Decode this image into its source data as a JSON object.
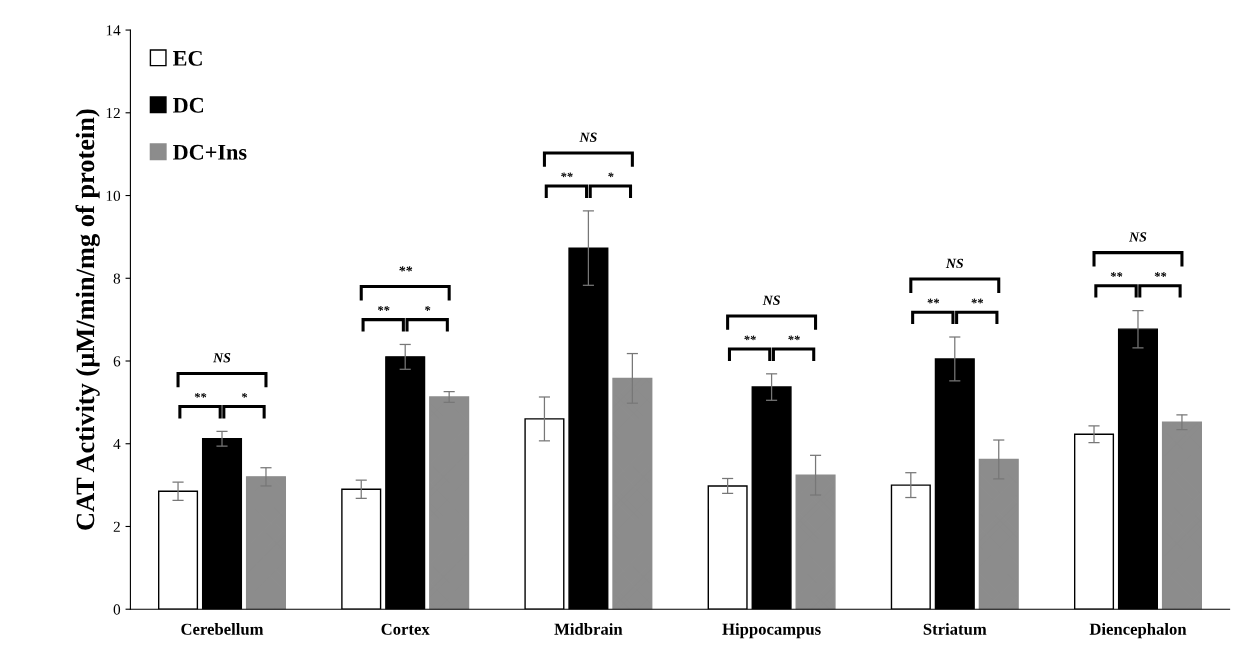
{
  "chart_data": {
    "type": "bar",
    "ylabel": "CAT Activity (µM/min/mg of protein)",
    "categories": [
      "Cerebellum",
      "Cortex",
      "Midbrain",
      "Hippocampus",
      "Striatum",
      "Diencephalon"
    ],
    "series": [
      {
        "name": "EC",
        "color": "#ffffff",
        "values": [
          2.85,
          2.9,
          4.6,
          2.98,
          3.0,
          4.23
        ],
        "errors": [
          0.22,
          0.22,
          0.53,
          0.18,
          0.3,
          0.2
        ]
      },
      {
        "name": "DC",
        "color": "#000000",
        "values": [
          4.12,
          6.1,
          8.73,
          5.37,
          6.05,
          6.77
        ],
        "errors": [
          0.18,
          0.3,
          0.9,
          0.32,
          0.53,
          0.45
        ]
      },
      {
        "name": "DC+Ins",
        "color": "#8c8c8c",
        "values": [
          3.2,
          5.13,
          5.58,
          3.24,
          3.62,
          4.52
        ],
        "errors": [
          0.22,
          0.13,
          0.6,
          0.48,
          0.47,
          0.18
        ]
      }
    ],
    "ylim": [
      0,
      14
    ],
    "yticks": [
      0,
      2,
      4,
      6,
      8,
      10,
      12,
      14
    ],
    "grid": false,
    "legend": "top left",
    "annotations": [
      "**",
      "*",
      "NS",
      "**",
      "*",
      "**",
      "**",
      "*",
      "NS",
      "**",
      "**",
      "NS",
      "**",
      "**",
      "NS",
      "**",
      "**",
      "NS"
    ]
  }
}
